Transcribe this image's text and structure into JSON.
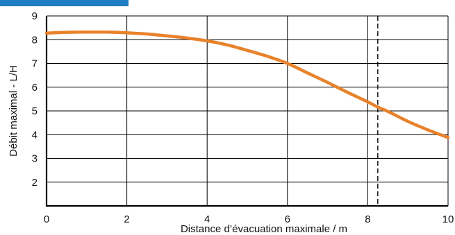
{
  "colors": {
    "accent_bar": "#1f7fc4",
    "curve": "#e8822b",
    "grid": "#000000"
  },
  "chart_data": {
    "type": "line",
    "title": "",
    "xlabel": "Distance d’évacuation maximale / m",
    "ylabel": "Débit maximal - L/H",
    "xlim": [
      0,
      10
    ],
    "ylim": [
      1,
      9
    ],
    "x_ticks": [
      "0",
      "2",
      "4",
      "6",
      "8",
      "10"
    ],
    "y_ticks": [
      "2",
      "3",
      "4",
      "5",
      "6",
      "7",
      "8",
      "9"
    ],
    "grid": true,
    "reference_lines": [
      {
        "x": 8.25,
        "style": "dashed"
      }
    ],
    "series": [
      {
        "x": [
          0,
          0.5,
          1,
          1.5,
          2,
          2.5,
          3,
          3.5,
          4,
          4.5,
          5,
          5.5,
          6,
          6.5,
          7,
          7.5,
          8,
          8.25,
          8.5,
          9,
          9.5,
          10
        ],
        "y": [
          8.28,
          8.31,
          8.32,
          8.32,
          8.29,
          8.24,
          8.16,
          8.07,
          7.95,
          7.78,
          7.55,
          7.3,
          7.0,
          6.6,
          6.2,
          5.78,
          5.38,
          5.16,
          4.98,
          4.56,
          4.2,
          3.88
        ]
      }
    ]
  }
}
